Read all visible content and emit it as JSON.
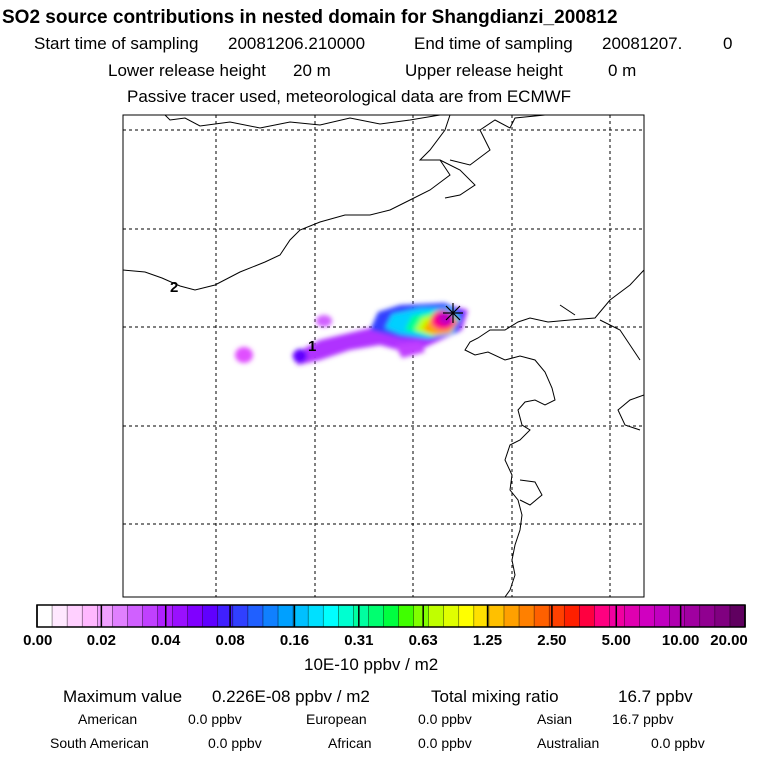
{
  "header": {
    "title": "SO2 source contributions in nested domain for Shangdianzi_200812",
    "start_label": "Start time of sampling",
    "start_value": "20081206.210000",
    "end_label": "End time of sampling",
    "end_value": "20081207.",
    "end_extra": "0",
    "lower_label": "Lower release height",
    "lower_value": "20 m",
    "upper_label": "Upper release height",
    "upper_value": "0 m",
    "note": "Passive tracer used, meteorological data are from ECMWF"
  },
  "map": {
    "contour_labels": [
      "2",
      "1"
    ],
    "marker": "receptor-star-icon"
  },
  "colorbar": {
    "ticks": [
      "0.00",
      "0.02",
      "0.04",
      "0.08",
      "0.16",
      "0.31",
      "0.63",
      "1.25",
      "2.50",
      "5.00",
      "10.00",
      "20.00"
    ],
    "unit": "10E-10 ppbv / m2",
    "colors": [
      "#ffffff",
      "#ffe8ff",
      "#ffd0ff",
      "#ffb8ff",
      "#f0a0ff",
      "#e080ff",
      "#d060ff",
      "#c040ff",
      "#b020ff",
      "#9a10ff",
      "#8000ff",
      "#6000ff",
      "#4020ff",
      "#3040ff",
      "#2060ff",
      "#1080ff",
      "#00a0ff",
      "#00c0ff",
      "#00e0ff",
      "#00ffff",
      "#00ffd0",
      "#00ffa0",
      "#00ff70",
      "#00ff40",
      "#40ff00",
      "#80ff00",
      "#c0ff00",
      "#e0ff00",
      "#ffff00",
      "#ffe000",
      "#ffc000",
      "#ffa000",
      "#ff8000",
      "#ff6000",
      "#ff4000",
      "#ff2000",
      "#ff0040",
      "#ff0080",
      "#f000a0",
      "#e000b0",
      "#d000c0",
      "#c000c0",
      "#b000b0",
      "#a000a0",
      "#900090",
      "#800080",
      "#600060"
    ]
  },
  "stats": {
    "max_label": "Maximum value",
    "max_value": "0.226E-08 ppbv / m2",
    "total_label": "Total mixing ratio",
    "total_value": "16.7 ppbv",
    "regions": [
      {
        "label": "American",
        "value": "0.0 ppbv"
      },
      {
        "label": "European",
        "value": "0.0 ppbv"
      },
      {
        "label": "Asian",
        "value": "16.7 ppbv"
      },
      {
        "label": "South American",
        "value": "0.0 ppbv"
      },
      {
        "label": "African",
        "value": "0.0 ppbv"
      },
      {
        "label": "Australian",
        "value": "0.0 ppbv"
      }
    ]
  }
}
